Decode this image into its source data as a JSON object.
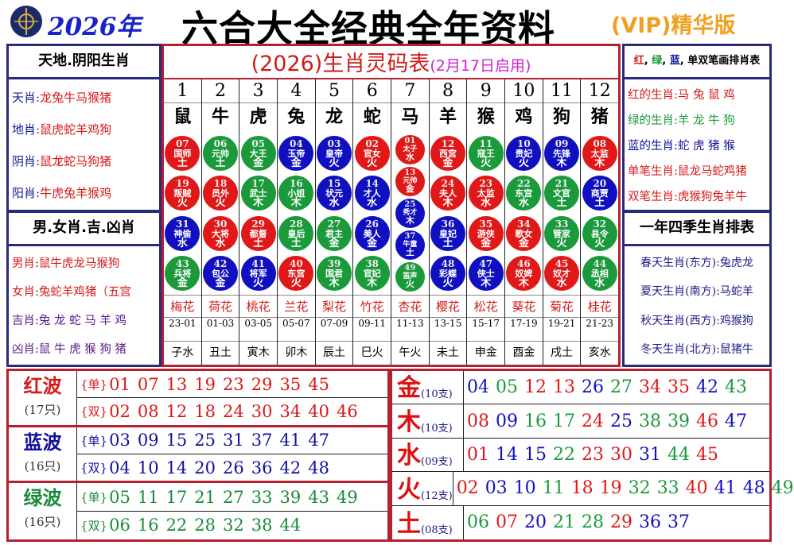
{
  "header": {
    "year": "2026年",
    "title": "六合大全经典全年资料",
    "vip": "(VIP)精华版",
    "logo": "hk-jockey-club-logo"
  },
  "colors": {
    "red": "#e01818",
    "blue": "#1010c0",
    "green": "#1a9a3a",
    "navy": "#2a2a7a",
    "frame": "#b52030"
  },
  "left1": {
    "title": "天地.阴阳生肖",
    "rows": [
      {
        "label": "天肖",
        "value": "龙兔牛马猴猪"
      },
      {
        "label": "地肖",
        "value": "鼠虎蛇羊鸡狗"
      },
      {
        "label": "阴肖",
        "value": "鼠龙蛇马狗猪"
      },
      {
        "label": "阳肖",
        "value": "牛虎兔羊猴鸡"
      }
    ]
  },
  "left2": {
    "title": "男.女肖.吉.凶肖",
    "rows": [
      {
        "label": "男肖",
        "value": "鼠牛虎龙马猴狗"
      },
      {
        "label": "女肖",
        "value": "兔蛇羊鸡猪（五宫"
      },
      {
        "label": "吉肖",
        "value": "兔 龙 蛇 马 羊 鸡"
      },
      {
        "label": "凶肖",
        "value": "鼠 牛 虎 猴 狗 猪"
      }
    ]
  },
  "right1": {
    "title_parts": [
      "红",
      "绿",
      "蓝",
      "单双笔画排肖表"
    ],
    "rows": [
      {
        "label": "红的生肖",
        "value": "马 兔 鼠 鸡",
        "color": "#d81818"
      },
      {
        "label": "绿的生肖",
        "value": "羊 龙 牛 狗",
        "color": "#1a9a3a"
      },
      {
        "label": "蓝的生肖",
        "value": "蛇 虎 猪 猴",
        "color": "#1010a0"
      },
      {
        "label": "单笔生肖",
        "value": "鼠龙马蛇鸡猪",
        "color": "#d81818"
      },
      {
        "label": "双笔生肖",
        "value": "虎猴狗兔羊牛",
        "color": "#d81818"
      }
    ]
  },
  "right2": {
    "title": "一年四季生肖排表",
    "rows": [
      {
        "label": "春天生肖(东方)",
        "value": "兔虎龙"
      },
      {
        "label": "夏天生肖(南方)",
        "value": "马蛇羊"
      },
      {
        "label": "秋天生肖(西方)",
        "value": "鸡猴狗"
      },
      {
        "label": "冬天生肖(北方)",
        "value": "鼠猪牛"
      }
    ]
  },
  "center": {
    "title": "(2026)生肖灵码表",
    "subtitle": "(2月17日启用)",
    "columns": [
      {
        "n": "1",
        "zodiac": "鼠",
        "flower": "梅花",
        "hours": "23-01",
        "branch": "子水",
        "balls": [
          {
            "num": "07",
            "name": "国师",
            "el": "土"
          },
          {
            "num": "19",
            "name": "叛贼",
            "el": "火"
          },
          {
            "num": "31",
            "name": "神偷",
            "el": "水"
          },
          {
            "num": "43",
            "name": "兵将",
            "el": "金"
          }
        ]
      },
      {
        "n": "2",
        "zodiac": "牛",
        "flower": "荷花",
        "hours": "01-03",
        "branch": "丑土",
        "balls": [
          {
            "num": "06",
            "name": "元帅",
            "el": "土"
          },
          {
            "num": "18",
            "name": "员外",
            "el": "火"
          },
          {
            "num": "30",
            "name": "大将",
            "el": "水"
          },
          {
            "num": "42",
            "name": "包公",
            "el": "金"
          }
        ]
      },
      {
        "n": "3",
        "zodiac": "虎",
        "flower": "桃花",
        "hours": "03-05",
        "branch": "寅木",
        "balls": [
          {
            "num": "05",
            "name": "大王",
            "el": "金"
          },
          {
            "num": "17",
            "name": "武士",
            "el": "木"
          },
          {
            "num": "29",
            "name": "都督",
            "el": "土"
          },
          {
            "num": "41",
            "name": "将军",
            "el": "火"
          }
        ]
      },
      {
        "n": "4",
        "zodiac": "兔",
        "flower": "兰花",
        "hours": "05-07",
        "branch": "卯木",
        "balls": [
          {
            "num": "04",
            "name": "玉帝",
            "el": "金"
          },
          {
            "num": "16",
            "name": "小姐",
            "el": "木"
          },
          {
            "num": "28",
            "name": "皇后",
            "el": "土"
          },
          {
            "num": "40",
            "name": "东宫",
            "el": "火"
          }
        ]
      },
      {
        "n": "5",
        "zodiac": "龙",
        "flower": "梨花",
        "hours": "07-09",
        "branch": "辰土",
        "balls": [
          {
            "num": "03",
            "name": "皇帝",
            "el": "火"
          },
          {
            "num": "15",
            "name": "状元",
            "el": "水"
          },
          {
            "num": "27",
            "name": "君主",
            "el": "金"
          },
          {
            "num": "39",
            "name": "国君",
            "el": "木"
          }
        ]
      },
      {
        "n": "6",
        "zodiac": "蛇",
        "flower": "竹花",
        "hours": "09-11",
        "branch": "巳火",
        "balls": [
          {
            "num": "02",
            "name": "官女",
            "el": "火"
          },
          {
            "num": "14",
            "name": "才人",
            "el": "水"
          },
          {
            "num": "26",
            "name": "美人",
            "el": "金"
          },
          {
            "num": "38",
            "name": "官妃",
            "el": "木"
          }
        ]
      },
      {
        "n": "7",
        "zodiac": "马",
        "flower": "杏花",
        "hours": "11-13",
        "branch": "午火",
        "balls": [
          {
            "num": "01",
            "name": "太子",
            "el": "水"
          },
          {
            "num": "13",
            "name": "元帅",
            "el": "金"
          },
          {
            "num": "25",
            "name": "秀才",
            "el": "木"
          },
          {
            "num": "37",
            "name": "牛童",
            "el": "土"
          },
          {
            "num": "49",
            "name": "笛声",
            "el": "火"
          }
        ]
      },
      {
        "n": "8",
        "zodiac": "羊",
        "flower": "樱花",
        "hours": "13-15",
        "branch": "未土",
        "balls": [
          {
            "num": "12",
            "name": "西宫",
            "el": "金"
          },
          {
            "num": "24",
            "name": "夫人",
            "el": "木"
          },
          {
            "num": "36",
            "name": "皇妃",
            "el": "土"
          },
          {
            "num": "48",
            "name": "彩蝶",
            "el": "火"
          }
        ]
      },
      {
        "n": "9",
        "zodiac": "猴",
        "flower": "松花",
        "hours": "15-17",
        "branch": "申金",
        "balls": [
          {
            "num": "11",
            "name": "寇王",
            "el": "火"
          },
          {
            "num": "23",
            "name": "太监",
            "el": "水"
          },
          {
            "num": "35",
            "name": "游侠",
            "el": "金"
          },
          {
            "num": "47",
            "name": "侠士",
            "el": "木"
          }
        ]
      },
      {
        "n": "10",
        "zodiac": "鸡",
        "flower": "葵花",
        "hours": "17-19",
        "branch": "酉金",
        "balls": [
          {
            "num": "10",
            "name": "贵妃",
            "el": "火"
          },
          {
            "num": "22",
            "name": "东宫",
            "el": "水"
          },
          {
            "num": "34",
            "name": "歌女",
            "el": "金"
          },
          {
            "num": "46",
            "name": "奴婢",
            "el": "木"
          }
        ]
      },
      {
        "n": "11",
        "zodiac": "狗",
        "flower": "菊花",
        "hours": "19-21",
        "branch": "戌土",
        "balls": [
          {
            "num": "09",
            "name": "先锋",
            "el": "木"
          },
          {
            "num": "21",
            "name": "文官",
            "el": "土"
          },
          {
            "num": "33",
            "name": "管家",
            "el": "火"
          },
          {
            "num": "45",
            "name": "奴才",
            "el": "水"
          }
        ]
      },
      {
        "n": "12",
        "zodiac": "猪",
        "flower": "桂花",
        "hours": "21-23",
        "branch": "亥水",
        "balls": [
          {
            "num": "08",
            "name": "太监",
            "el": "木"
          },
          {
            "num": "20",
            "name": "商贾",
            "el": "土"
          },
          {
            "num": "32",
            "name": "县令",
            "el": "火"
          },
          {
            "num": "44",
            "name": "丞相",
            "el": "水"
          }
        ]
      }
    ]
  },
  "waves": [
    {
      "name": "红波",
      "count": "(17只)",
      "color": "#d81818",
      "odd_label": "{单}",
      "odd": [
        "01",
        "07",
        "13",
        "19",
        "23",
        "29",
        "35",
        "45"
      ],
      "even_label": "{双}",
      "even": [
        "02",
        "08",
        "12",
        "18",
        "24",
        "30",
        "34",
        "40",
        "46"
      ]
    },
    {
      "name": "蓝波",
      "count": "(16只)",
      "color": "#1010a0",
      "odd_label": "{单}",
      "odd": [
        "03",
        "09",
        "15",
        "25",
        "31",
        "37",
        "41",
        "47"
      ],
      "even_label": "{双}",
      "even": [
        "04",
        "10",
        "14",
        "20",
        "26",
        "36",
        "42",
        "48"
      ]
    },
    {
      "name": "绿波",
      "count": "(16只)",
      "color": "#1a8a3a",
      "odd_label": "{单}",
      "odd": [
        "05",
        "11",
        "17",
        "21",
        "27",
        "33",
        "39",
        "43",
        "49"
      ],
      "even_label": "{双}",
      "even": [
        "06",
        "16",
        "22",
        "28",
        "32",
        "38",
        "44"
      ]
    }
  ],
  "elements": [
    {
      "name": "金",
      "count": "(10支)",
      "nums": [
        "04",
        "05",
        "12",
        "13",
        "26",
        "27",
        "34",
        "35",
        "42",
        "43"
      ]
    },
    {
      "name": "木",
      "count": "(10支)",
      "nums": [
        "08",
        "09",
        "16",
        "17",
        "24",
        "25",
        "38",
        "39",
        "46",
        "47"
      ]
    },
    {
      "name": "水",
      "count": "(09支)",
      "nums": [
        "01",
        "14",
        "15",
        "22",
        "23",
        "30",
        "31",
        "44",
        "45"
      ]
    },
    {
      "name": "火",
      "count": "(12支)",
      "nums": [
        "02",
        "03",
        "10",
        "11",
        "18",
        "19",
        "32",
        "33",
        "40",
        "41",
        "48",
        "49"
      ]
    },
    {
      "name": "土",
      "count": "(08支)",
      "nums": [
        "06",
        "07",
        "20",
        "21",
        "28",
        "29",
        "36",
        "37"
      ]
    }
  ]
}
